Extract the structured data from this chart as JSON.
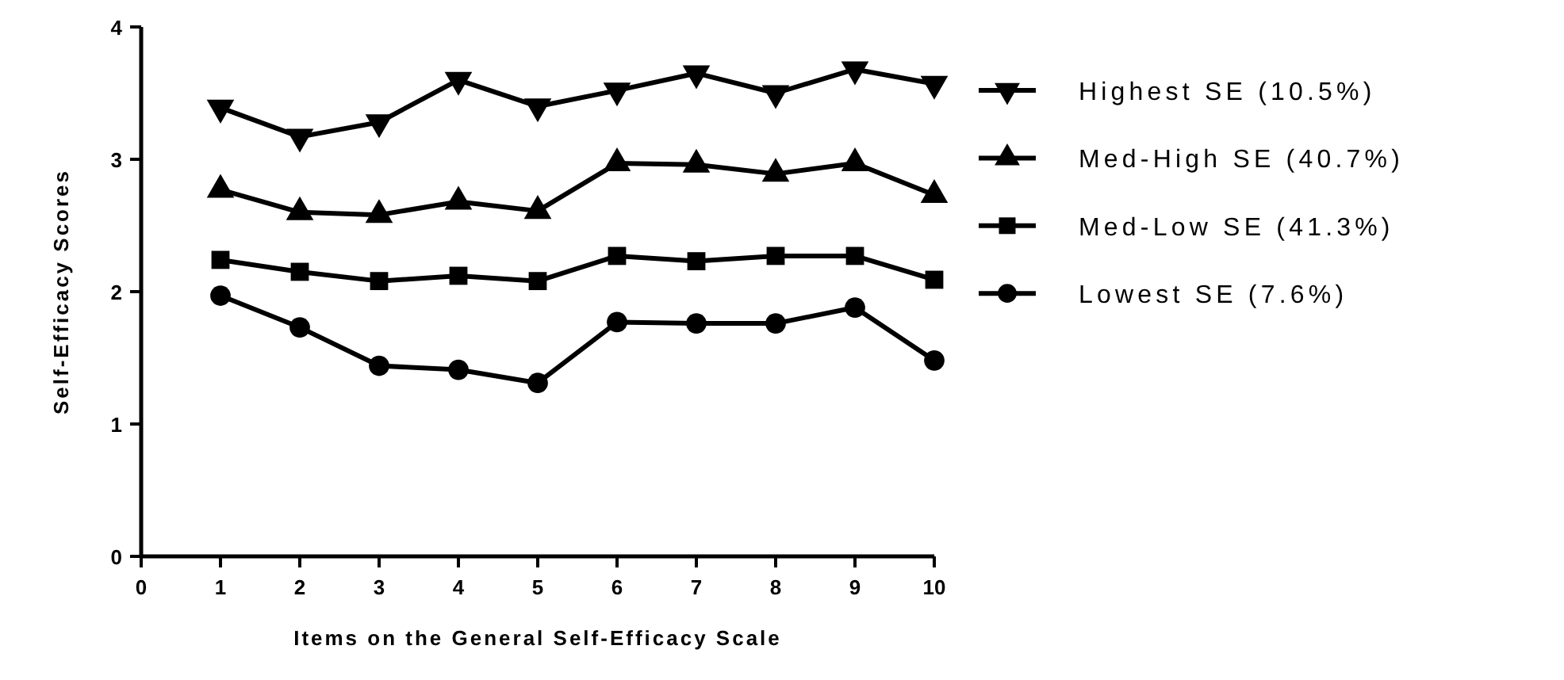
{
  "chart_data": {
    "type": "line",
    "xlabel": "Items on the General Self-Efficacy Scale",
    "ylabel": "Self-Efficacy Scores",
    "x": [
      1,
      2,
      3,
      4,
      5,
      6,
      7,
      8,
      9,
      10
    ],
    "xlim": [
      0,
      10
    ],
    "xticks": [
      0,
      1,
      2,
      3,
      4,
      5,
      6,
      7,
      8,
      9,
      10
    ],
    "ylim": [
      0,
      4
    ],
    "yticks": [
      0,
      1,
      2,
      3,
      4
    ],
    "grid": false,
    "legend": "right",
    "line_style": "solid",
    "series": [
      {
        "name": "Highest SE (10.5%)",
        "color": "#000000",
        "marker": "triangle-down",
        "values": [
          3.39,
          3.17,
          3.28,
          3.6,
          3.4,
          3.52,
          3.65,
          3.5,
          3.68,
          3.57
        ]
      },
      {
        "name": "Med-High SE (40.7%)",
        "color": "#000000",
        "marker": "triangle",
        "values": [
          2.77,
          2.6,
          2.58,
          2.68,
          2.61,
          2.97,
          2.96,
          2.89,
          2.97,
          2.73
        ]
      },
      {
        "name": "Med-Low SE (41.3%)",
        "color": "#000000",
        "marker": "square",
        "values": [
          2.24,
          2.15,
          2.08,
          2.12,
          2.08,
          2.27,
          2.23,
          2.27,
          2.27,
          2.09
        ]
      },
      {
        "name": "Lowest SE (7.6%)",
        "color": "#000000",
        "marker": "circle",
        "values": [
          1.97,
          1.73,
          1.44,
          1.41,
          1.31,
          1.77,
          1.76,
          1.76,
          1.88,
          1.48
        ]
      }
    ]
  }
}
